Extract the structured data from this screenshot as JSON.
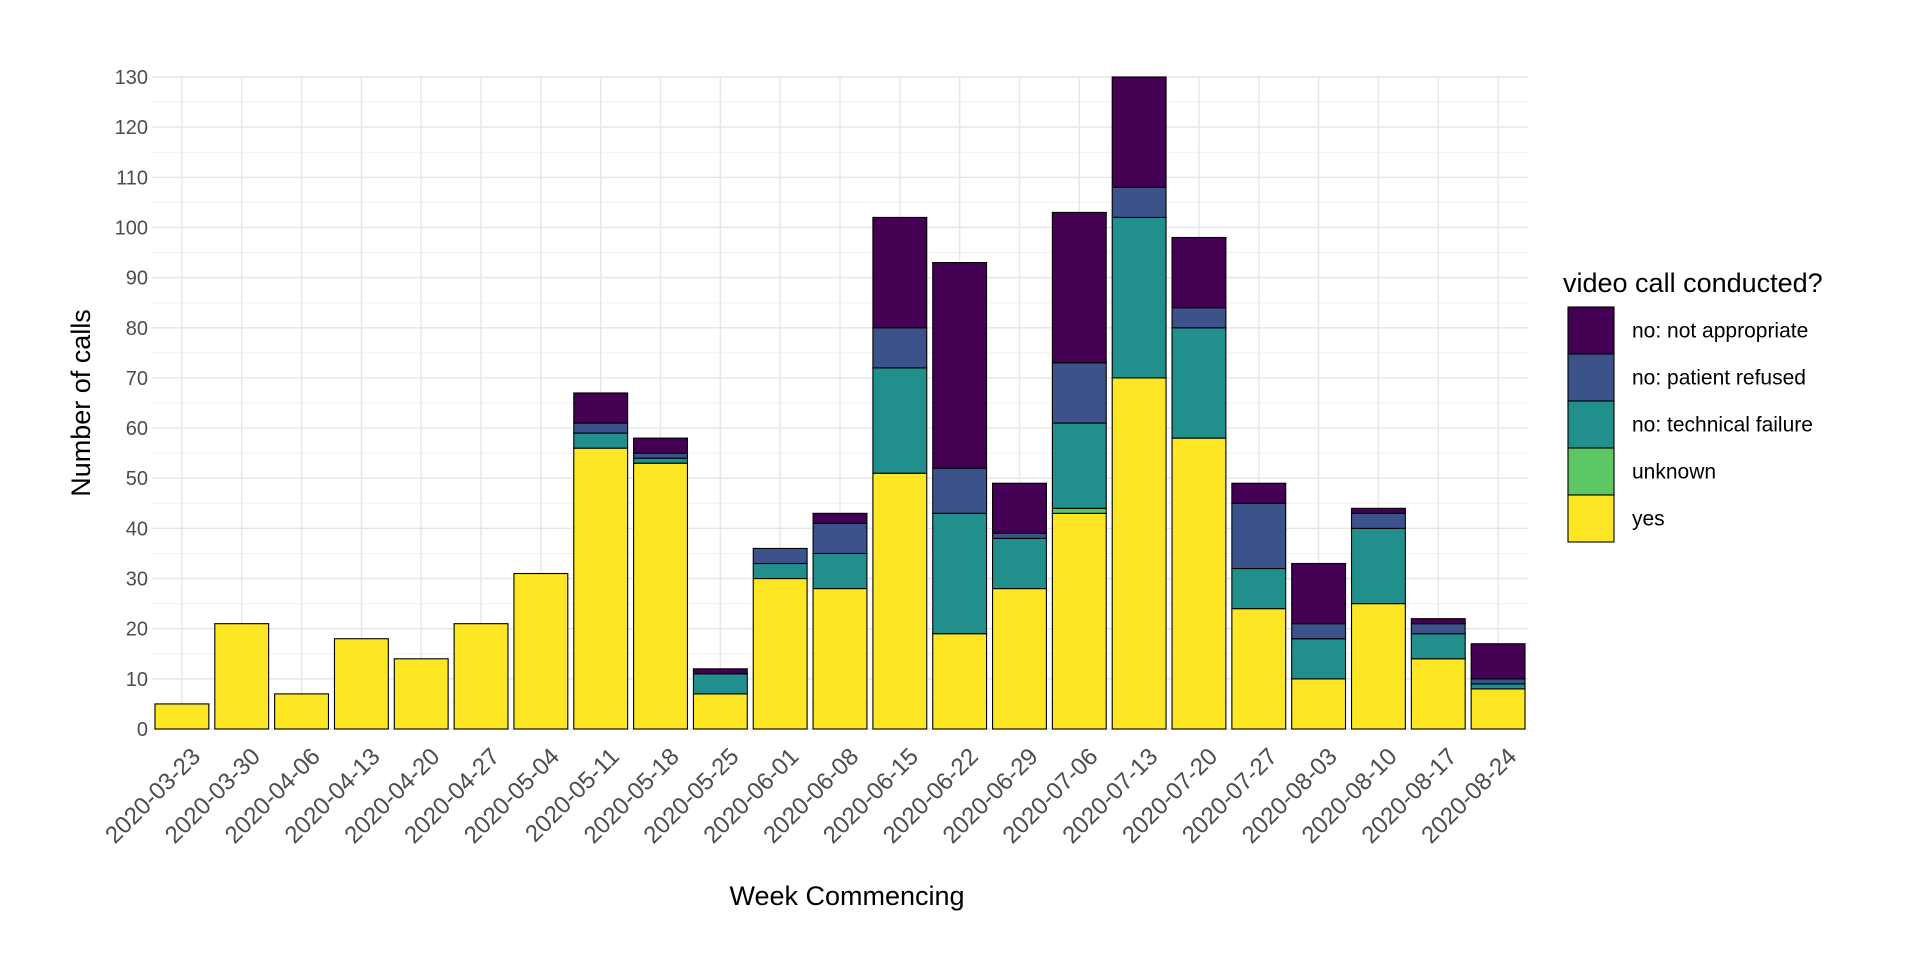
{
  "chart_data": {
    "type": "bar",
    "stacked": true,
    "xlabel": "Week Commencing",
    "ylabel": "Number of calls",
    "ylim": [
      0,
      130
    ],
    "y_ticks": [
      0,
      10,
      20,
      30,
      40,
      50,
      60,
      70,
      80,
      90,
      100,
      110,
      120,
      130
    ],
    "grid": true,
    "legend": {
      "title": "video call conducted?",
      "placement": "right",
      "order": [
        "no: not appropriate",
        "no: patient refused",
        "no: technical failure",
        "unknown",
        "yes"
      ]
    },
    "categories": [
      "2020-03-23",
      "2020-03-30",
      "2020-04-06",
      "2020-04-13",
      "2020-04-20",
      "2020-04-27",
      "2020-05-04",
      "2020-05-11",
      "2020-05-18",
      "2020-05-25",
      "2020-06-01",
      "2020-06-08",
      "2020-06-15",
      "2020-06-22",
      "2020-06-29",
      "2020-07-06",
      "2020-07-13",
      "2020-07-20",
      "2020-07-27",
      "2020-08-03",
      "2020-08-10",
      "2020-08-17",
      "2020-08-24"
    ],
    "series": [
      {
        "name": "yes",
        "color": "#FDE725",
        "values": [
          5,
          21,
          7,
          18,
          14,
          21,
          31,
          56,
          53,
          7,
          30,
          28,
          51,
          19,
          28,
          43,
          70,
          58,
          24,
          10,
          25,
          14,
          8
        ]
      },
      {
        "name": "unknown",
        "color": "#5DC863",
        "values": [
          0,
          0,
          0,
          0,
          0,
          0,
          0,
          0,
          0,
          0,
          0,
          0,
          0,
          0,
          0,
          1,
          0,
          0,
          0,
          0,
          0,
          0,
          0
        ]
      },
      {
        "name": "no: technical failure",
        "color": "#21908C",
        "values": [
          0,
          0,
          0,
          0,
          0,
          0,
          0,
          3,
          1,
          4,
          3,
          7,
          21,
          24,
          10,
          17,
          32,
          22,
          8,
          8,
          15,
          5,
          1
        ]
      },
      {
        "name": "no: patient refused",
        "color": "#3B528B",
        "values": [
          0,
          0,
          0,
          0,
          0,
          0,
          0,
          2,
          1,
          0,
          3,
          6,
          8,
          9,
          1,
          12,
          6,
          4,
          13,
          3,
          3,
          2,
          1
        ]
      },
      {
        "name": "no: not appropriate",
        "color": "#440154",
        "values": [
          0,
          0,
          0,
          0,
          0,
          0,
          0,
          6,
          3,
          1,
          0,
          2,
          22,
          41,
          10,
          30,
          22,
          14,
          4,
          12,
          1,
          1,
          7
        ]
      }
    ]
  }
}
